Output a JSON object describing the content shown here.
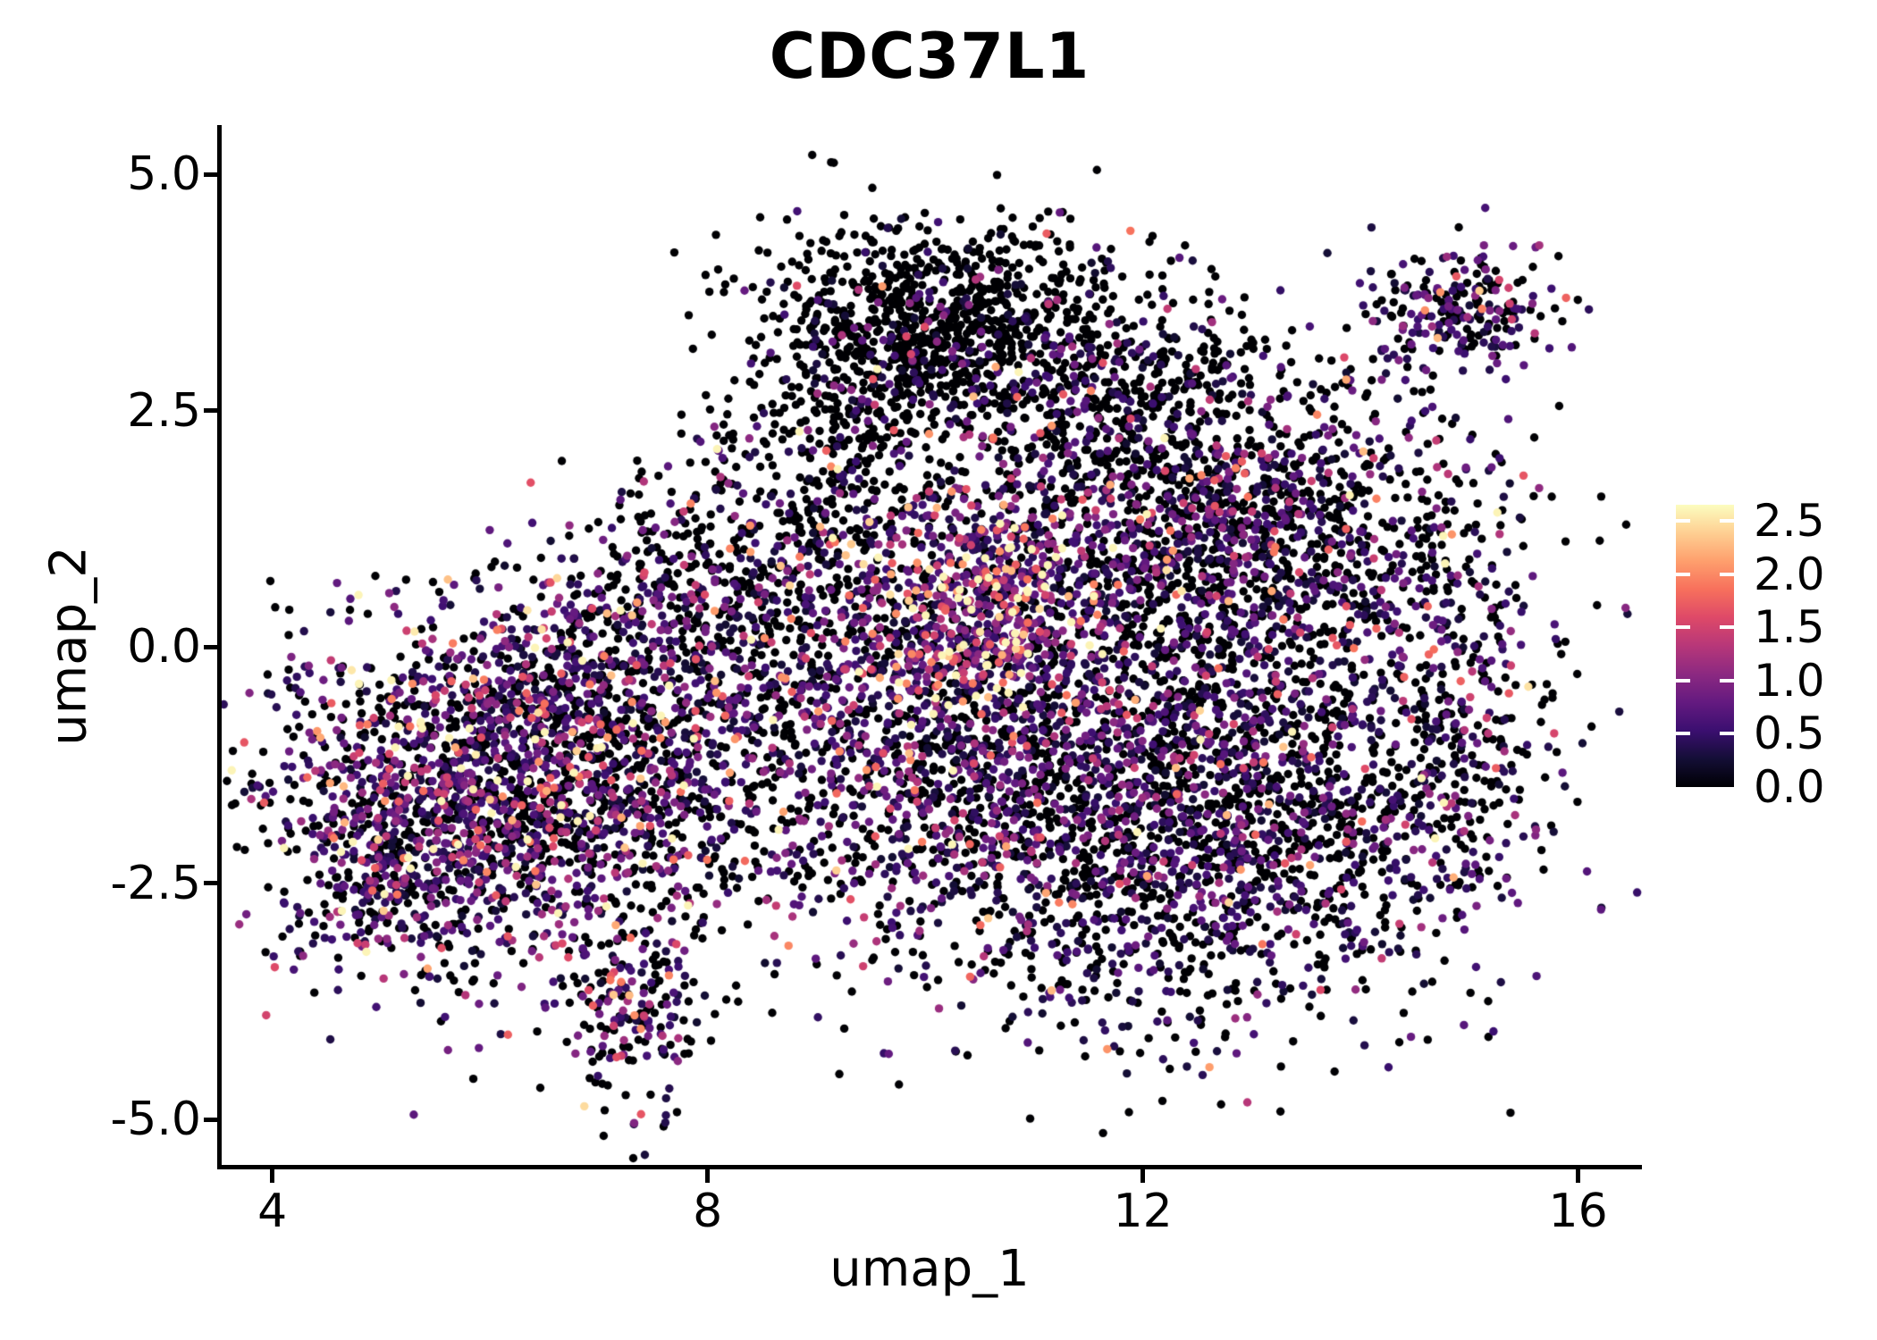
{
  "title": "CDC37L1",
  "chart_data": {
    "type": "scatter",
    "title": "CDC37L1",
    "xlabel": "umap_1",
    "ylabel": "umap_2",
    "xlim": [
      3.51,
      16.57
    ],
    "ylim": [
      -5.49,
      5.52
    ],
    "grid": false,
    "x_ticks": [
      {
        "value": 4,
        "label": "4"
      },
      {
        "value": 8,
        "label": "8"
      },
      {
        "value": 12,
        "label": "12"
      },
      {
        "value": 16,
        "label": "16"
      }
    ],
    "y_ticks": [
      {
        "value": 5.0,
        "label": "5.0"
      },
      {
        "value": 2.5,
        "label": "2.5"
      },
      {
        "value": 0.0,
        "label": "0.0"
      },
      {
        "value": -2.5,
        "label": "-2.5"
      },
      {
        "value": -5.0,
        "label": "-5.0"
      }
    ],
    "colorbar": {
      "position": "right",
      "vmin": 0.0,
      "vmax": 2.65,
      "ticks": [
        {
          "value": 2.5,
          "label": "2.5"
        },
        {
          "value": 2.0,
          "label": "2.0"
        },
        {
          "value": 1.5,
          "label": "1.5"
        },
        {
          "value": 1.0,
          "label": "1.0"
        },
        {
          "value": 0.5,
          "label": "0.5"
        },
        {
          "value": 0.0,
          "label": "0.0"
        }
      ],
      "colormap": "magma",
      "stops": [
        [
          0.0,
          "#000004"
        ],
        [
          0.1,
          "#140e36"
        ],
        [
          0.2,
          "#3b0f70"
        ],
        [
          0.3,
          "#641a80"
        ],
        [
          0.4,
          "#8c2981"
        ],
        [
          0.5,
          "#b73779"
        ],
        [
          0.6,
          "#de4968"
        ],
        [
          0.7,
          "#f7705c"
        ],
        [
          0.8,
          "#fe9f6d"
        ],
        [
          0.9,
          "#fecf92"
        ],
        [
          1.0,
          "#fcfdbf"
        ]
      ]
    },
    "point_radius_px": 4.7,
    "value_max": 2.6,
    "seed": 7,
    "total_points": 11105,
    "clusters": [
      {
        "name": "top-protrusion",
        "center": [
          10.35,
          3.55
        ],
        "sd": [
          0.72,
          0.5
        ],
        "n": 620,
        "zero_frac": 0.84,
        "expr_mean": 0.45
      },
      {
        "name": "top-arm-left",
        "center": [
          9.5,
          2.95
        ],
        "sd": [
          0.55,
          0.5
        ],
        "n": 260,
        "zero_frac": 0.8,
        "expr_mean": 0.5
      },
      {
        "name": "top-mid-right",
        "center": [
          11.6,
          2.75
        ],
        "sd": [
          0.85,
          0.55
        ],
        "n": 520,
        "zero_frac": 0.7,
        "expr_mean": 0.5
      },
      {
        "name": "topright-island",
        "center": [
          14.9,
          3.55
        ],
        "sd": [
          0.42,
          0.34
        ],
        "n": 230,
        "zero_frac": 0.45,
        "expr_mean": 0.6
      },
      {
        "name": "upper-right-lobe",
        "center": [
          12.9,
          1.25
        ],
        "sd": [
          1.15,
          0.8
        ],
        "n": 1450,
        "zero_frac": 0.56,
        "expr_mean": 0.58
      },
      {
        "name": "right-mass",
        "center": [
          12.35,
          -1.7
        ],
        "sd": [
          1.4,
          1.15
        ],
        "n": 2500,
        "zero_frac": 0.54,
        "expr_mean": 0.52
      },
      {
        "name": "right-edge",
        "center": [
          14.85,
          -0.8
        ],
        "sd": [
          0.5,
          1.0
        ],
        "n": 280,
        "zero_frac": 0.5,
        "expr_mean": 0.55
      },
      {
        "name": "central-hotspot",
        "center": [
          10.55,
          0.35
        ],
        "sd": [
          0.8,
          0.85
        ],
        "n": 650,
        "zero_frac": 0.25,
        "expr_mean": 1.0
      },
      {
        "name": "hotspot-core",
        "center": [
          10.6,
          0.55
        ],
        "sd": [
          0.38,
          0.5
        ],
        "n": 220,
        "zero_frac": 0.15,
        "expr_mean": 1.4
      },
      {
        "name": "central-lower",
        "center": [
          10.1,
          -1.3
        ],
        "sd": [
          0.85,
          0.85
        ],
        "n": 520,
        "zero_frac": 0.4,
        "expr_mean": 0.7
      },
      {
        "name": "bridge-top",
        "center": [
          8.95,
          1.45
        ],
        "sd": [
          0.75,
          0.8
        ],
        "n": 430,
        "zero_frac": 0.7,
        "expr_mean": 0.5
      },
      {
        "name": "bridge-mid",
        "center": [
          8.8,
          -0.4
        ],
        "sd": [
          0.6,
          0.95
        ],
        "n": 340,
        "zero_frac": 0.55,
        "expr_mean": 0.6
      },
      {
        "name": "upper-left-sparse",
        "center": [
          7.9,
          0.8
        ],
        "sd": [
          0.6,
          0.45
        ],
        "n": 160,
        "zero_frac": 0.6,
        "expr_mean": 0.6
      },
      {
        "name": "left-lobe",
        "center": [
          6.3,
          -1.7
        ],
        "sd": [
          1.15,
          0.95
        ],
        "n": 1800,
        "zero_frac": 0.46,
        "expr_mean": 0.66
      },
      {
        "name": "left-hot",
        "center": [
          6.0,
          -1.15
        ],
        "sd": [
          0.8,
          0.7
        ],
        "n": 340,
        "zero_frac": 0.3,
        "expr_mean": 0.95
      },
      {
        "name": "left-lobe-upper",
        "center": [
          7.0,
          -0.15
        ],
        "sd": [
          0.8,
          0.55
        ],
        "n": 400,
        "zero_frac": 0.45,
        "expr_mean": 0.7
      },
      {
        "name": "left-tip",
        "center": [
          5.0,
          -2.35
        ],
        "sd": [
          0.35,
          0.55
        ],
        "n": 170,
        "zero_frac": 0.4,
        "expr_mean": 0.8
      },
      {
        "name": "bottom-appendage",
        "center": [
          7.35,
          -3.95
        ],
        "sd": [
          0.33,
          0.48
        ],
        "n": 155,
        "zero_frac": 0.45,
        "expr_mean": 0.75
      },
      {
        "name": "top-left-outliers",
        "center": [
          9.0,
          3.9
        ],
        "sd": [
          0.6,
          0.45
        ],
        "n": 60,
        "zero_frac": 0.8,
        "expr_mean": 0.5
      }
    ]
  }
}
